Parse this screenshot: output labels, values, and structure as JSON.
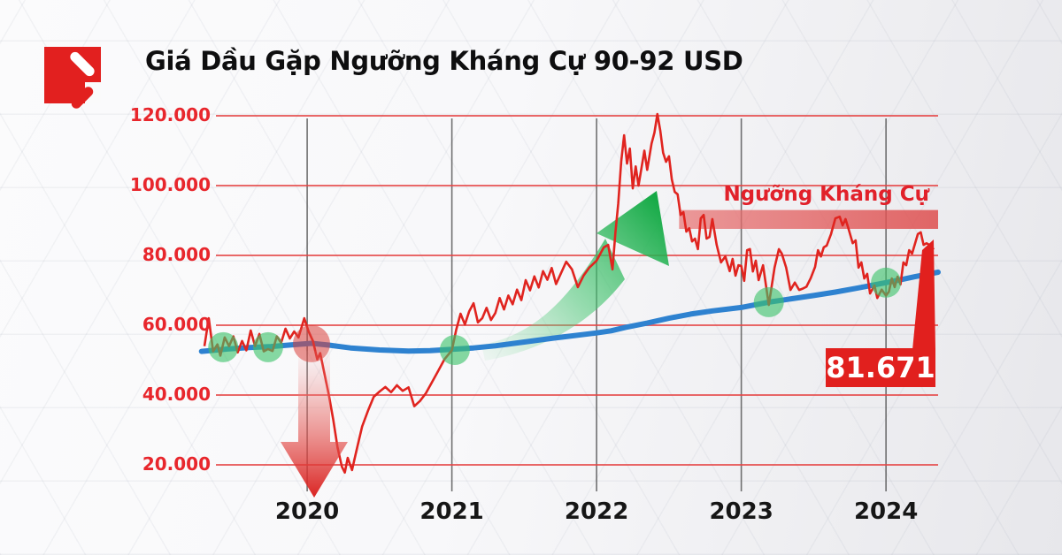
{
  "header": {
    "title": "Giá Dầu Gặp Ngưỡng Kháng Cự 90-92 USD"
  },
  "logo": {
    "name": "brand-logo"
  },
  "chart_data": {
    "type": "line",
    "title": "Giá Dầu Gặp Ngưỡng Kháng Cự 90-92 USD",
    "x_axis": {
      "tick_values": [
        2020,
        2021,
        2022,
        2023,
        2024
      ],
      "tick_labels": [
        "2020",
        "2021",
        "2022",
        "2023",
        "2024"
      ],
      "range": [
        2019.29,
        2024.36
      ]
    },
    "y_axis": {
      "tick_values": [
        20,
        40,
        60,
        80,
        100,
        120
      ],
      "tick_labels": [
        "20.000",
        "40.000",
        "60.000",
        "80.000",
        "100.000",
        "120.000"
      ],
      "range": [
        20,
        120
      ]
    },
    "grid": {
      "horizontal": true,
      "vertical": true
    },
    "colors": {
      "price_line": "#e0241f",
      "ma_line": "#2e82d0",
      "gridline": "#e64444",
      "year_line": "#4f4f4f",
      "support_marker": "#3dc46a",
      "breakdown_marker": "#db403a",
      "resistance_band": "#dd5858",
      "callout": "#e1201e",
      "up_arrow": "#14a945",
      "down_arrow": "#d91d1b"
    },
    "series": [
      {
        "name": "oil-price",
        "color": "#e0241f",
        "points": [
          [
            2019.29,
            54
          ],
          [
            2019.32,
            62
          ],
          [
            2019.35,
            52.5
          ],
          [
            2019.38,
            54.5
          ],
          [
            2019.4,
            51.3
          ],
          [
            2019.43,
            56.5
          ],
          [
            2019.46,
            54
          ],
          [
            2019.49,
            56.8
          ],
          [
            2019.52,
            52.2
          ],
          [
            2019.55,
            55.5
          ],
          [
            2019.58,
            52.8
          ],
          [
            2019.61,
            58.5
          ],
          [
            2019.64,
            54
          ],
          [
            2019.67,
            57.5
          ],
          [
            2019.7,
            52.5
          ],
          [
            2019.73,
            53.2
          ],
          [
            2019.76,
            52.6
          ],
          [
            2019.79,
            56.8
          ],
          [
            2019.82,
            55
          ],
          [
            2019.85,
            59
          ],
          [
            2019.88,
            56.2
          ],
          [
            2019.91,
            58.2
          ],
          [
            2019.94,
            56.5
          ],
          [
            2019.98,
            62
          ],
          [
            2020.01,
            58.2
          ],
          [
            2020.04,
            55.5
          ],
          [
            2020.07,
            50.2
          ],
          [
            2020.09,
            52
          ],
          [
            2020.12,
            46
          ],
          [
            2020.15,
            40
          ],
          [
            2020.18,
            33
          ],
          [
            2020.21,
            25
          ],
          [
            2020.24,
            19.5
          ],
          [
            2020.26,
            17.8
          ],
          [
            2020.28,
            22
          ],
          [
            2020.31,
            18.5
          ],
          [
            2020.34,
            24
          ],
          [
            2020.38,
            31
          ],
          [
            2020.42,
            35.5
          ],
          [
            2020.46,
            39.5
          ],
          [
            2020.5,
            41
          ],
          [
            2020.54,
            42.3
          ],
          [
            2020.58,
            40.8
          ],
          [
            2020.62,
            42.8
          ],
          [
            2020.66,
            41.2
          ],
          [
            2020.7,
            42.2
          ],
          [
            2020.74,
            36.8
          ],
          [
            2020.78,
            38.3
          ],
          [
            2020.82,
            40.5
          ],
          [
            2020.86,
            43.5
          ],
          [
            2020.9,
            46.5
          ],
          [
            2020.95,
            50.3
          ],
          [
            2021,
            52.8
          ],
          [
            2021.03,
            58.7
          ],
          [
            2021.06,
            63.3
          ],
          [
            2021.09,
            60.2
          ],
          [
            2021.12,
            64
          ],
          [
            2021.15,
            66.3
          ],
          [
            2021.18,
            60.8
          ],
          [
            2021.21,
            62
          ],
          [
            2021.24,
            65
          ],
          [
            2021.27,
            61.5
          ],
          [
            2021.3,
            63.5
          ],
          [
            2021.33,
            67.8
          ],
          [
            2021.36,
            64.5
          ],
          [
            2021.39,
            68.5
          ],
          [
            2021.42,
            66
          ],
          [
            2021.45,
            70.2
          ],
          [
            2021.48,
            67.2
          ],
          [
            2021.51,
            72.9
          ],
          [
            2021.54,
            70
          ],
          [
            2021.57,
            74
          ],
          [
            2021.6,
            70.8
          ],
          [
            2021.63,
            75.5
          ],
          [
            2021.66,
            73
          ],
          [
            2021.69,
            76.4
          ],
          [
            2021.72,
            71.8
          ],
          [
            2021.75,
            74.5
          ],
          [
            2021.79,
            78.2
          ],
          [
            2021.83,
            76
          ],
          [
            2021.87,
            70.9
          ],
          [
            2021.91,
            74.2
          ],
          [
            2021.95,
            76.5
          ],
          [
            2022,
            78.5
          ],
          [
            2022.05,
            82.3
          ],
          [
            2022.08,
            83
          ],
          [
            2022.11,
            76
          ],
          [
            2022.13,
            86.6
          ],
          [
            2022.15,
            94.9
          ],
          [
            2022.17,
            106.8
          ],
          [
            2022.19,
            114.4
          ],
          [
            2022.21,
            106.3
          ],
          [
            2022.23,
            110.6
          ],
          [
            2022.25,
            99.2
          ],
          [
            2022.27,
            105.5
          ],
          [
            2022.29,
            100
          ],
          [
            2022.31,
            105
          ],
          [
            2022.33,
            110
          ],
          [
            2022.35,
            104.5
          ],
          [
            2022.38,
            112
          ],
          [
            2022.4,
            115.2
          ],
          [
            2022.42,
            120.5
          ],
          [
            2022.44,
            115.7
          ],
          [
            2022.46,
            109.4
          ],
          [
            2022.48,
            106.8
          ],
          [
            2022.5,
            108.4
          ],
          [
            2022.52,
            101.8
          ],
          [
            2022.54,
            98.2
          ],
          [
            2022.56,
            97.5
          ],
          [
            2022.58,
            91.6
          ],
          [
            2022.6,
            92.4
          ],
          [
            2022.62,
            86.8
          ],
          [
            2022.64,
            87.8
          ],
          [
            2022.66,
            84
          ],
          [
            2022.68,
            84.8
          ],
          [
            2022.7,
            81.8
          ],
          [
            2022.72,
            90.6
          ],
          [
            2022.74,
            91.6
          ],
          [
            2022.76,
            84.8
          ],
          [
            2022.78,
            85.3
          ],
          [
            2022.8,
            90.4
          ],
          [
            2022.83,
            83
          ],
          [
            2022.86,
            78
          ],
          [
            2022.89,
            79.7
          ],
          [
            2022.92,
            75.5
          ],
          [
            2022.94,
            79
          ],
          [
            2022.96,
            74.2
          ],
          [
            2022.98,
            77.2
          ],
          [
            2023,
            77
          ],
          [
            2023.02,
            72.7
          ],
          [
            2023.04,
            81.5
          ],
          [
            2023.06,
            81.8
          ],
          [
            2023.08,
            75.4
          ],
          [
            2023.1,
            78.5
          ],
          [
            2023.12,
            72.9
          ],
          [
            2023.15,
            77.2
          ],
          [
            2023.19,
            65.8
          ],
          [
            2023.23,
            76.5
          ],
          [
            2023.26,
            81.8
          ],
          [
            2023.28,
            80.5
          ],
          [
            2023.31,
            76.5
          ],
          [
            2023.34,
            70.1
          ],
          [
            2023.37,
            72.2
          ],
          [
            2023.4,
            70.1
          ],
          [
            2023.42,
            70.4
          ],
          [
            2023.45,
            71
          ],
          [
            2023.48,
            73.5
          ],
          [
            2023.51,
            76.7
          ],
          [
            2023.53,
            81.5
          ],
          [
            2023.55,
            79.7
          ],
          [
            2023.57,
            82.3
          ],
          [
            2023.59,
            82.8
          ],
          [
            2023.62,
            86.1
          ],
          [
            2023.65,
            90.6
          ],
          [
            2023.68,
            91.1
          ],
          [
            2023.7,
            88.6
          ],
          [
            2023.72,
            90.4
          ],
          [
            2023.74,
            87.8
          ],
          [
            2023.77,
            83.5
          ],
          [
            2023.79,
            84.3
          ],
          [
            2023.81,
            76.5
          ],
          [
            2023.83,
            78
          ],
          [
            2023.85,
            73.4
          ],
          [
            2023.87,
            74.7
          ],
          [
            2023.89,
            69.1
          ],
          [
            2023.92,
            71.4
          ],
          [
            2023.94,
            67.8
          ],
          [
            2023.97,
            70.2
          ],
          [
            2024,
            68.5
          ],
          [
            2024.02,
            69.6
          ],
          [
            2024.04,
            73.4
          ],
          [
            2024.06,
            70.9
          ],
          [
            2024.08,
            73.9
          ],
          [
            2024.1,
            71.7
          ],
          [
            2024.12,
            78
          ],
          [
            2024.14,
            77.2
          ],
          [
            2024.16,
            81.5
          ],
          [
            2024.18,
            80.5
          ],
          [
            2024.22,
            86.1
          ],
          [
            2024.24,
            86.6
          ],
          [
            2024.26,
            83
          ],
          [
            2024.28,
            83.5
          ],
          [
            2024.3,
            83
          ],
          [
            2024.33,
            81.7
          ]
        ]
      },
      {
        "name": "trend-moving-average",
        "color": "#2e82d0",
        "points": [
          [
            2019.27,
            52.5
          ],
          [
            2019.45,
            53.2
          ],
          [
            2019.6,
            53.6
          ],
          [
            2019.75,
            53.9
          ],
          [
            2019.9,
            54.4
          ],
          [
            2020.03,
            54.8
          ],
          [
            2020.15,
            54.3
          ],
          [
            2020.3,
            53.5
          ],
          [
            2020.5,
            52.9
          ],
          [
            2020.7,
            52.6
          ],
          [
            2020.85,
            52.7
          ],
          [
            2021,
            53.1
          ],
          [
            2021.15,
            53.5
          ],
          [
            2021.3,
            54.1
          ],
          [
            2021.5,
            55.2
          ],
          [
            2021.7,
            56.3
          ],
          [
            2021.9,
            57.3
          ],
          [
            2022,
            57.8
          ],
          [
            2022.1,
            58.4
          ],
          [
            2022.2,
            59.4
          ],
          [
            2022.35,
            60.6
          ],
          [
            2022.5,
            62
          ],
          [
            2022.65,
            63.2
          ],
          [
            2022.8,
            64.1
          ],
          [
            2023,
            65.1
          ],
          [
            2023.19,
            66.6
          ],
          [
            2023.35,
            67.6
          ],
          [
            2023.5,
            68.5
          ],
          [
            2023.65,
            69.5
          ],
          [
            2023.8,
            70.6
          ],
          [
            2024,
            72.2
          ],
          [
            2024.1,
            73
          ],
          [
            2024.2,
            73.9
          ],
          [
            2024.3,
            74.7
          ],
          [
            2024.36,
            75.2
          ]
        ]
      }
    ],
    "markers": {
      "support_touches": [
        [
          2019.42,
          53.7
        ],
        [
          2019.73,
          53.7
        ],
        [
          2021.02,
          52.9
        ],
        [
          2023.19,
          66.6
        ],
        [
          2024.0,
          72.2
        ]
      ],
      "breakdown_point": [
        [
          2020.03,
          54.7
        ]
      ]
    },
    "resistance_zone": {
      "label": "Ngưỡng Kháng Cự",
      "price_from": 87.6,
      "price_to": 93,
      "x_from": 2022.57,
      "x_to": 2024.36
    },
    "last_price_label": "81.671",
    "annotations": {
      "up_trend_arrow": "green curved arrow from 2021 lows to 2022 peak",
      "crash_arrow": "red down arrow at 2020 covid crash"
    }
  }
}
